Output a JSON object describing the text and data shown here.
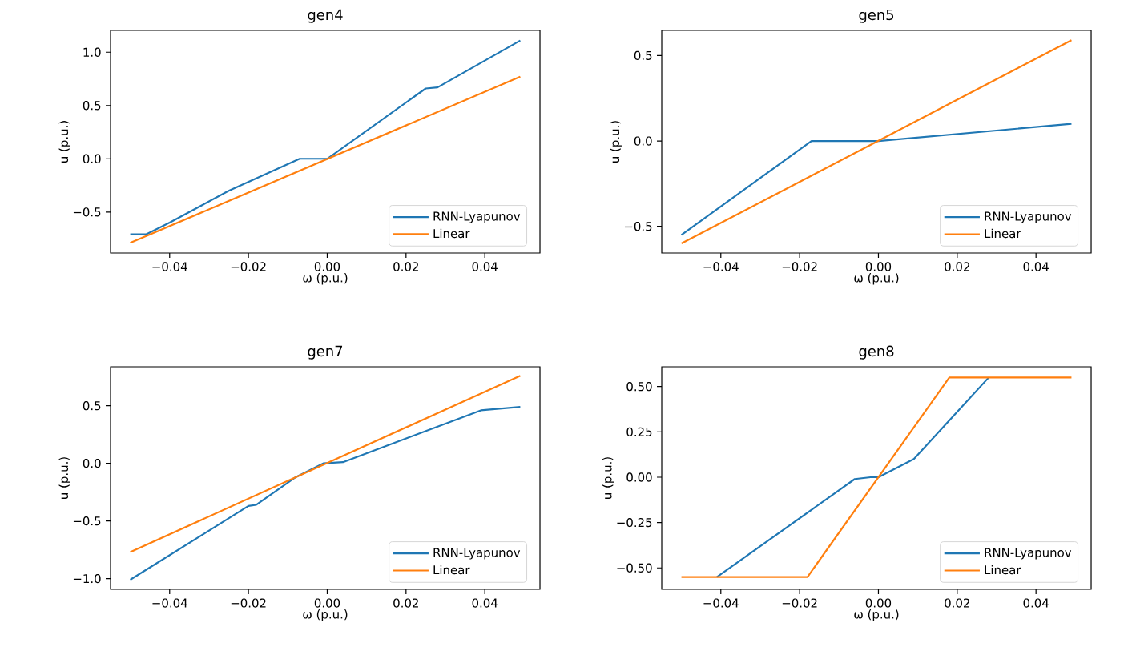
{
  "chart_data": [
    {
      "type": "line",
      "title": "gen4",
      "xlabel": "ω (p.u.)",
      "ylabel": "u (p.u.)",
      "xlim": [
        -0.055,
        0.054
      ],
      "ylim": [
        -0.885,
        1.205
      ],
      "xticks": [
        {
          "value": -0.04,
          "label": "−0.04"
        },
        {
          "value": -0.02,
          "label": "−0.02"
        },
        {
          "value": 0,
          "label": "0.00"
        },
        {
          "value": 0.02,
          "label": "0.02"
        },
        {
          "value": 0.04,
          "label": "0.04"
        }
      ],
      "yticks": [
        {
          "value": -0.5,
          "label": "−0.5"
        },
        {
          "value": 0,
          "label": "0.0"
        },
        {
          "value": 0.5,
          "label": "0.5"
        },
        {
          "value": 1.0,
          "label": "1.0"
        }
      ],
      "legend": "bottom right",
      "grid": false,
      "series": [
        {
          "name": "RNN-Lyapunov",
          "color": "#1f77b4",
          "x": [
            -0.05,
            -0.046,
            -0.04,
            -0.025,
            -0.007,
            0,
            0.025,
            0.028,
            0.049
          ],
          "values": [
            -0.71,
            -0.71,
            -0.6,
            -0.3,
            0,
            0,
            0.66,
            0.67,
            1.11
          ]
        },
        {
          "name": "Linear",
          "color": "#ff7f0e",
          "x": [
            -0.05,
            0.049
          ],
          "values": [
            -0.79,
            0.77
          ]
        }
      ]
    },
    {
      "type": "line",
      "title": "gen5",
      "xlabel": "ω (p.u.)",
      "ylabel": "u (p.u.)",
      "xlim": [
        -0.055,
        0.054
      ],
      "ylim": [
        -0.656,
        0.647
      ],
      "xticks": [
        {
          "value": -0.04,
          "label": "−0.04"
        },
        {
          "value": -0.02,
          "label": "−0.02"
        },
        {
          "value": 0,
          "label": "0.00"
        },
        {
          "value": 0.02,
          "label": "0.02"
        },
        {
          "value": 0.04,
          "label": "0.04"
        }
      ],
      "yticks": [
        {
          "value": -0.5,
          "label": "−0.5"
        },
        {
          "value": 0,
          "label": "0.0"
        },
        {
          "value": 0.5,
          "label": "0.5"
        }
      ],
      "legend": "bottom right",
      "grid": false,
      "series": [
        {
          "name": "RNN-Lyapunov",
          "color": "#1f77b4",
          "x": [
            -0.05,
            -0.017,
            0,
            0.049
          ],
          "values": [
            -0.55,
            0,
            0,
            0.1
          ]
        },
        {
          "name": "Linear",
          "color": "#ff7f0e",
          "x": [
            -0.05,
            0.049
          ],
          "values": [
            -0.6,
            0.59
          ]
        }
      ]
    },
    {
      "type": "line",
      "title": "gen7",
      "xlabel": "ω (p.u.)",
      "ylabel": "u (p.u.)",
      "xlim": [
        -0.055,
        0.054
      ],
      "ylim": [
        -1.093,
        0.838
      ],
      "xticks": [
        {
          "value": -0.04,
          "label": "−0.04"
        },
        {
          "value": -0.02,
          "label": "−0.02"
        },
        {
          "value": 0,
          "label": "0.00"
        },
        {
          "value": 0.02,
          "label": "0.02"
        },
        {
          "value": 0.04,
          "label": "0.04"
        }
      ],
      "yticks": [
        {
          "value": -1.0,
          "label": "−1.0"
        },
        {
          "value": -0.5,
          "label": "−0.5"
        },
        {
          "value": 0,
          "label": "0.0"
        },
        {
          "value": 0.5,
          "label": "0.5"
        }
      ],
      "legend": "bottom right",
      "grid": false,
      "series": [
        {
          "name": "RNN-Lyapunov",
          "color": "#1f77b4",
          "x": [
            -0.05,
            -0.02,
            -0.018,
            -0.008,
            -0.001,
            0.004,
            0.039,
            0.049
          ],
          "values": [
            -1.01,
            -0.37,
            -0.36,
            -0.12,
            0,
            0.01,
            0.46,
            0.49
          ]
        },
        {
          "name": "Linear",
          "color": "#ff7f0e",
          "x": [
            -0.05,
            0.049
          ],
          "values": [
            -0.77,
            0.76
          ]
        }
      ]
    },
    {
      "type": "line",
      "title": "gen8",
      "xlabel": "ω (p.u.)",
      "ylabel": "u (p.u.)",
      "xlim": [
        -0.055,
        0.054
      ],
      "ylim": [
        -0.618,
        0.609
      ],
      "xticks": [
        {
          "value": -0.04,
          "label": "−0.04"
        },
        {
          "value": -0.02,
          "label": "−0.02"
        },
        {
          "value": 0,
          "label": "0.00"
        },
        {
          "value": 0.02,
          "label": "0.02"
        },
        {
          "value": 0.04,
          "label": "0.04"
        }
      ],
      "yticks": [
        {
          "value": -0.5,
          "label": "−0.50"
        },
        {
          "value": -0.25,
          "label": "−0.25"
        },
        {
          "value": 0,
          "label": "0.00"
        },
        {
          "value": 0.25,
          "label": "0.25"
        },
        {
          "value": 0.5,
          "label": "0.50"
        }
      ],
      "legend": "bottom right",
      "grid": false,
      "series": [
        {
          "name": "RNN-Lyapunov",
          "color": "#1f77b4",
          "x": [
            -0.041,
            -0.006,
            -0.002,
            0,
            0.009,
            0.028
          ],
          "values": [
            -0.55,
            -0.01,
            0,
            0,
            0.1,
            0.55
          ]
        },
        {
          "name": "Linear",
          "color": "#ff7f0e",
          "x": [
            -0.05,
            -0.018,
            0.018,
            0.049
          ],
          "values": [
            -0.55,
            -0.55,
            0.55,
            0.55
          ]
        }
      ]
    }
  ]
}
